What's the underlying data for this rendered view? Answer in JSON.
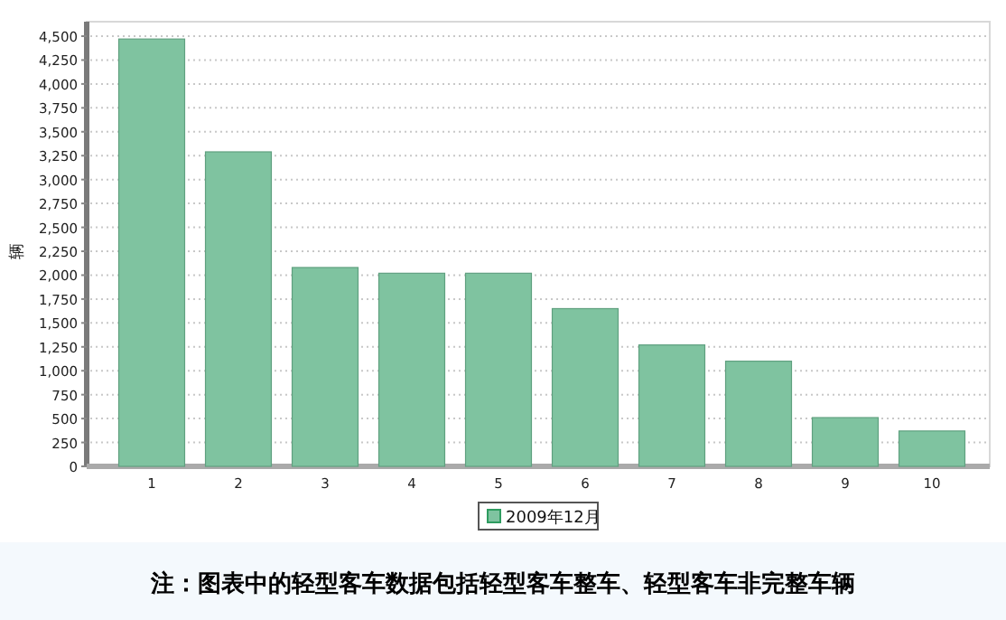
{
  "chart_data": {
    "type": "bar",
    "ylabel": "辆",
    "categories": [
      "1",
      "2",
      "3",
      "4",
      "5",
      "6",
      "7",
      "8",
      "9",
      "10"
    ],
    "series": [
      {
        "name": "2009年12月",
        "color": "#7fc3a0",
        "values": [
          4470,
          3290,
          2080,
          2020,
          2020,
          1650,
          1270,
          1100,
          510,
          370
        ]
      }
    ],
    "ylim": [
      0,
      4500
    ],
    "yticks": [
      0,
      250,
      500,
      750,
      {
        "value": 1000,
        "label": "1,000"
      },
      {
        "value": 1250,
        "label": "1,250"
      },
      {
        "value": 1500,
        "label": "1,500"
      },
      {
        "value": 1750,
        "label": "1,750"
      },
      {
        "value": 2000,
        "label": "2,000"
      },
      {
        "value": 2250,
        "label": "2,250"
      },
      {
        "value": 2500,
        "label": "2,500"
      },
      {
        "value": 2750,
        "label": "2,750"
      },
      {
        "value": 3000,
        "label": "3,000"
      },
      {
        "value": 3250,
        "label": "3,250"
      },
      {
        "value": 3500,
        "label": "3,500"
      },
      {
        "value": 3750,
        "label": "3,750"
      },
      {
        "value": 4000,
        "label": "4,000"
      },
      {
        "value": 4250,
        "label": "4,250"
      },
      {
        "value": 4500,
        "label": "4,500"
      }
    ],
    "grid": "y",
    "legend": "bottom",
    "annotations": [
      "注：图表中的轻型客车数据包括轻型客车整车、轻型客车非完整车辆"
    ]
  }
}
